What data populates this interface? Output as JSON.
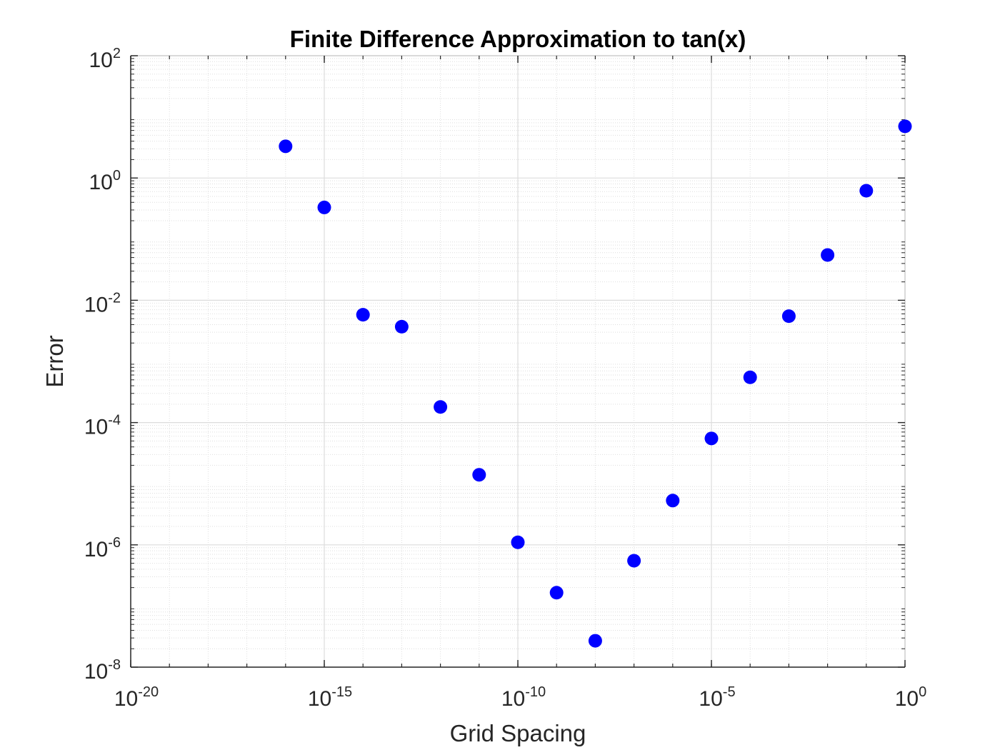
{
  "chart_data": {
    "type": "scatter",
    "title": "Finite Difference Approximation to tan(x)",
    "xlabel": "Grid Spacing",
    "ylabel": "Error",
    "xscale": "log",
    "yscale": "log",
    "xlim": [
      1e-20,
      1
    ],
    "ylim": [
      1e-08,
      100
    ],
    "grid": true,
    "minor_grid": true,
    "x_ticks": [
      {
        "value": 1e-20,
        "base": "10",
        "exp": "-20"
      },
      {
        "value": 1e-15,
        "base": "10",
        "exp": "-15"
      },
      {
        "value": 1e-10,
        "base": "10",
        "exp": "-10"
      },
      {
        "value": 1e-05,
        "base": "10",
        "exp": "-5"
      },
      {
        "value": 1,
        "base": "10",
        "exp": "0"
      }
    ],
    "y_ticks": [
      {
        "value": 1e-08,
        "base": "10",
        "exp": "-8"
      },
      {
        "value": 1e-06,
        "base": "10",
        "exp": "-6"
      },
      {
        "value": 0.0001,
        "base": "10",
        "exp": "-4"
      },
      {
        "value": 0.01,
        "base": "10",
        "exp": "-2"
      },
      {
        "value": 1,
        "base": "10",
        "exp": "0"
      },
      {
        "value": 100,
        "base": "10",
        "exp": "2"
      }
    ],
    "series": [
      {
        "marker_color": "#0000ff",
        "marker": "filled-circle",
        "x": [
          1e-16,
          1e-15,
          1e-14,
          1e-13,
          1e-12,
          1e-11,
          1e-10,
          1e-09,
          1e-08,
          1e-07,
          1e-06,
          1e-05,
          0.0001,
          0.001,
          0.01,
          0.1,
          1
        ],
        "y": [
          3.3,
          0.33,
          0.0058,
          0.0037,
          0.00018,
          1.4e-05,
          1.1e-06,
          1.65e-07,
          2.7e-08,
          5.5e-07,
          5.3e-06,
          5.5e-05,
          0.00055,
          0.0055,
          0.055,
          0.62,
          7.0
        ]
      }
    ]
  }
}
